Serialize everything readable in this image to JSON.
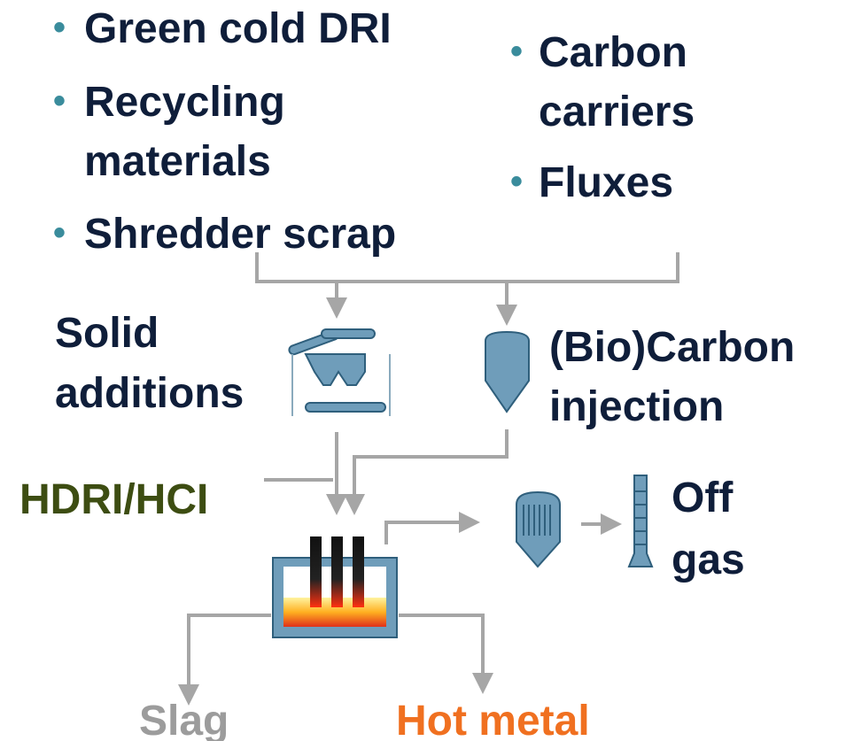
{
  "left_inputs": [
    {
      "lines": [
        "Green cold DRI"
      ]
    },
    {
      "lines": [
        "Recycling",
        "materials"
      ]
    },
    {
      "lines": [
        "Shredder scrap"
      ]
    }
  ],
  "right_inputs": [
    {
      "lines": [
        "Carbon",
        "carriers"
      ]
    },
    {
      "lines": [
        "Fluxes"
      ]
    }
  ],
  "solid_additions": [
    "Solid",
    "additions"
  ],
  "carbon_injection": [
    "(Bio)Carbon",
    "injection"
  ],
  "hdri": "HDRI/HCI",
  "off_gas": [
    "Off",
    "gas"
  ],
  "slag": "Slag",
  "hot_metal": "Hot metal"
}
